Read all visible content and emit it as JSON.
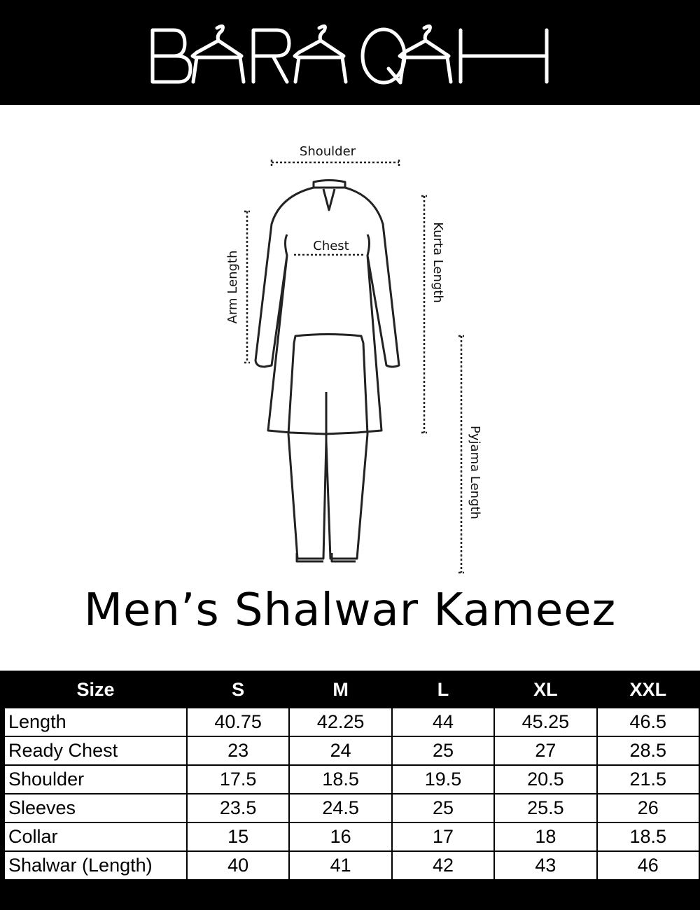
{
  "brand": {
    "logo_text": "BARAQAH"
  },
  "diagram": {
    "labels": {
      "shoulder": "Shoulder",
      "chest": "Chest",
      "arm_length": "Arm Length",
      "kurta_length": "Kurta Length",
      "pyjama_length": "Pyjama Length"
    }
  },
  "title": "Men’s Shalwar Kameez",
  "table": {
    "headers": [
      "Size",
      "S",
      "M",
      "L",
      "XL",
      "XXL"
    ],
    "rows": [
      {
        "label": "Length",
        "values": [
          "40.75",
          "42.25",
          "44",
          "45.25",
          "46.5"
        ]
      },
      {
        "label": "Ready Chest",
        "values": [
          "23",
          "24",
          "25",
          "27",
          "28.5"
        ]
      },
      {
        "label": "Shoulder",
        "values": [
          "17.5",
          "18.5",
          "19.5",
          "20.5",
          "21.5"
        ]
      },
      {
        "label": "Sleeves",
        "values": [
          "23.5",
          "24.5",
          "25",
          "25.5",
          "26"
        ]
      },
      {
        "label": "Collar",
        "values": [
          "15",
          "16",
          "17",
          "18",
          "18.5"
        ]
      },
      {
        "label": "Shalwar (Length)",
        "values": [
          "40",
          "41",
          "42",
          "43",
          "46"
        ]
      }
    ]
  }
}
